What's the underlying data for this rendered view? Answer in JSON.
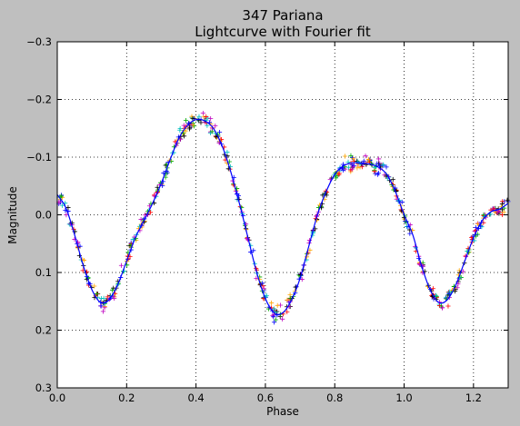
{
  "chart_data": {
    "type": "scatter",
    "title": "347 Pariana",
    "subtitle": "Lightcurve with Fourier fit",
    "xlabel": "Phase",
    "ylabel": "Magnitude",
    "xlim": [
      0.0,
      1.3
    ],
    "ylim": [
      0.3,
      -0.3
    ],
    "y_inverted": true,
    "grid": true,
    "xticks": [
      "0.0",
      "0.2",
      "0.4",
      "0.6",
      "0.8",
      "1.0",
      "1.2"
    ],
    "yticks": [
      "−0.3",
      "−0.2",
      "−0.1",
      "0.0",
      "0.1",
      "0.2",
      "0.3"
    ],
    "background_color": "#bfbfbf",
    "plot_background": "#ffffff",
    "fit_color": "#0000ff",
    "point_colors": [
      "#ff0000",
      "#00aa00",
      "#0000ff",
      "#00bfbf",
      "#bf00bf",
      "#ffa500",
      "#000000"
    ],
    "fit_curve": {
      "x": [
        0.0,
        0.025,
        0.05,
        0.075,
        0.1,
        0.125,
        0.15,
        0.175,
        0.2,
        0.225,
        0.25,
        0.275,
        0.3,
        0.325,
        0.35,
        0.375,
        0.4,
        0.425,
        0.45,
        0.475,
        0.5,
        0.525,
        0.55,
        0.575,
        0.6,
        0.625,
        0.65,
        0.675,
        0.7,
        0.725,
        0.75,
        0.775,
        0.8,
        0.825,
        0.85,
        0.875,
        0.9,
        0.925,
        0.95,
        0.975,
        1.0,
        1.025,
        1.05,
        1.075,
        1.1,
        1.125,
        1.15,
        1.175,
        1.2,
        1.225,
        1.25,
        1.275,
        1.3
      ],
      "y": [
        -0.035,
        -0.012,
        0.035,
        0.088,
        0.13,
        0.152,
        0.147,
        0.12,
        0.08,
        0.04,
        0.01,
        -0.02,
        -0.055,
        -0.095,
        -0.132,
        -0.155,
        -0.165,
        -0.163,
        -0.15,
        -0.12,
        -0.075,
        -0.02,
        0.04,
        0.1,
        0.145,
        0.17,
        0.17,
        0.148,
        0.11,
        0.055,
        0.0,
        -0.04,
        -0.07,
        -0.085,
        -0.09,
        -0.09,
        -0.088,
        -0.083,
        -0.07,
        -0.04,
        0.0,
        0.035,
        0.088,
        0.13,
        0.152,
        0.147,
        0.12,
        0.08,
        0.04,
        0.01,
        -0.005,
        -0.01,
        -0.02
      ]
    }
  }
}
